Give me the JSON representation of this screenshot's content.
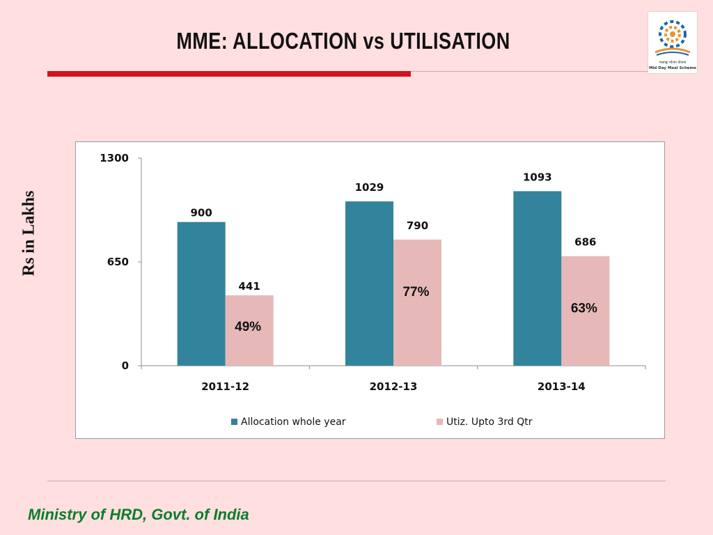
{
  "slide": {
    "title": "MME: ALLOCATION vs UTILISATION",
    "y_axis_side_label": "Rs in Lakhs",
    "footer": "Ministry of HRD, Govt. of India",
    "logo_icon": "mid-day-meal-scheme-logo",
    "logo_text_1": "मध्याह्न भोजन योजना",
    "logo_text_2": "Mid Day Meal Scheme"
  },
  "chart_data": {
    "type": "bar",
    "categories": [
      "2011-12",
      "2012-13",
      "2013-14"
    ],
    "series": [
      {
        "name": "Allocation whole year",
        "values": [
          900,
          1029,
          1093
        ],
        "color": "#31849b"
      },
      {
        "name": "Utiz. Upto 3rd Qtr",
        "values": [
          441,
          790,
          686
        ],
        "color": "#e6b9b8"
      }
    ],
    "data_labels": [
      [
        "900",
        "1029",
        "1093"
      ],
      [
        "441",
        "790",
        "686"
      ]
    ],
    "percent_labels": [
      "49%",
      "77%",
      "63%"
    ],
    "yticks": [
      0,
      650,
      1300
    ],
    "ylim": [
      0,
      1300
    ],
    "grid": false,
    "legend": "bottom"
  }
}
